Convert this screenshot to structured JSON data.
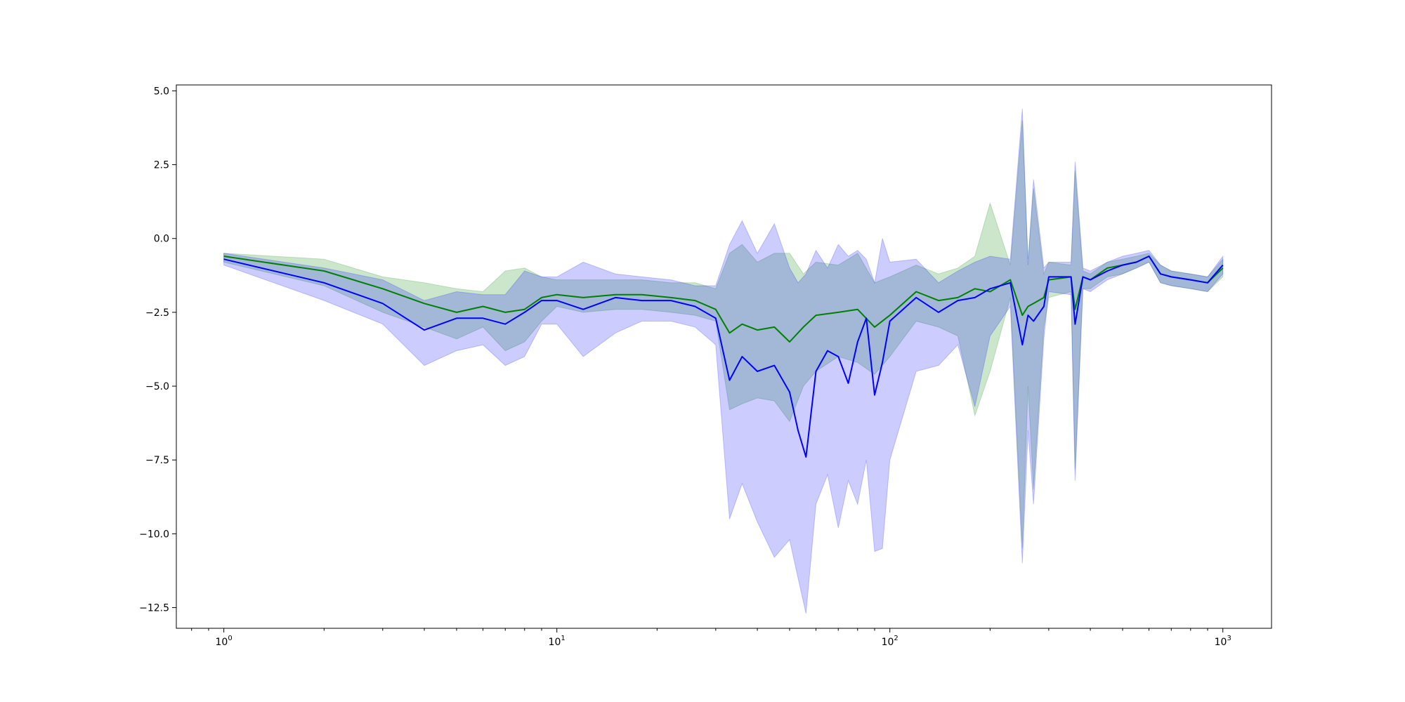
{
  "chart_data": {
    "type": "line",
    "title": "",
    "xlabel": "",
    "ylabel": "",
    "x_scale": "log",
    "xlim": [
      0.72,
      1400
    ],
    "ylim": [
      -13.2,
      5.2
    ],
    "grid": false,
    "x_ticks": [
      {
        "value": 1,
        "base": "10",
        "exp": "0"
      },
      {
        "value": 10,
        "base": "10",
        "exp": "1"
      },
      {
        "value": 100,
        "base": "10",
        "exp": "2"
      },
      {
        "value": 1000,
        "base": "10",
        "exp": "3"
      }
    ],
    "y_ticks": [
      {
        "value": 5.0,
        "label": "5.0"
      },
      {
        "value": 2.5,
        "label": "2.5"
      },
      {
        "value": 0.0,
        "label": "0.0"
      },
      {
        "value": -2.5,
        "label": "−2.5"
      },
      {
        "value": -5.0,
        "label": "−5.0"
      },
      {
        "value": -7.5,
        "label": "−7.5"
      },
      {
        "value": -10.0,
        "label": "−10.0"
      },
      {
        "value": -12.5,
        "label": "−12.5"
      }
    ],
    "series": [
      {
        "color": "#008000",
        "band_color": "#008000",
        "band_opacity": 0.2,
        "x": [
          1,
          2,
          3,
          4,
          5,
          6,
          7,
          8,
          9,
          10,
          12,
          15,
          18,
          22,
          26,
          30,
          33,
          36,
          40,
          45,
          50,
          55,
          60,
          70,
          80,
          90,
          100,
          120,
          140,
          160,
          180,
          200,
          230,
          250,
          260,
          270,
          290,
          300,
          350,
          360,
          380,
          400,
          450,
          500,
          550,
          600,
          650,
          700,
          800,
          900,
          1000
        ],
        "y": [
          -0.6,
          -1.1,
          -1.7,
          -2.2,
          -2.5,
          -2.3,
          -2.5,
          -2.4,
          -2.0,
          -1.9,
          -2.0,
          -1.9,
          -1.9,
          -2.0,
          -2.1,
          -2.4,
          -3.2,
          -2.9,
          -3.1,
          -3.0,
          -3.5,
          -3.0,
          -2.6,
          -2.5,
          -2.4,
          -3.0,
          -2.6,
          -1.8,
          -2.1,
          -2.0,
          -1.7,
          -1.8,
          -1.4,
          -2.6,
          -2.3,
          -2.2,
          -2.0,
          -1.4,
          -1.3,
          -2.4,
          -1.3,
          -1.4,
          -1.0,
          -0.9,
          -0.8,
          -0.6,
          -1.2,
          -1.3,
          -1.4,
          -1.5,
          -1.0
        ],
        "upper": [
          -0.5,
          -0.7,
          -1.3,
          -1.5,
          -1.7,
          -1.8,
          -1.1,
          -1.0,
          -1.3,
          -1.4,
          -1.4,
          -1.4,
          -1.4,
          -1.5,
          -1.5,
          -1.7,
          -0.5,
          -0.2,
          -0.8,
          -0.5,
          -0.5,
          -1.2,
          -0.8,
          -0.9,
          -0.5,
          -1.5,
          -1.3,
          -0.9,
          -1.2,
          -1.0,
          -0.6,
          1.2,
          -0.9,
          4.0,
          -0.7,
          1.7,
          -1.2,
          -0.8,
          -0.9,
          2.3,
          -1.1,
          -1.2,
          -0.8,
          -0.7,
          -0.6,
          -0.5,
          -0.9,
          -1.1,
          -1.2,
          -1.3,
          -0.7
        ],
        "lower": [
          -0.8,
          -1.6,
          -2.5,
          -3.0,
          -3.4,
          -3.0,
          -3.8,
          -3.5,
          -2.8,
          -2.3,
          -2.5,
          -2.4,
          -2.4,
          -2.5,
          -2.6,
          -2.8,
          -5.8,
          -5.6,
          -5.4,
          -5.5,
          -6.2,
          -5.0,
          -4.5,
          -4.0,
          -4.2,
          -4.6,
          -4.0,
          -2.8,
          -3.0,
          -3.3,
          -6.0,
          -4.5,
          -2.0,
          -10.5,
          -5.0,
          -8.5,
          -3.0,
          -2.0,
          -1.8,
          -7.8,
          -1.7,
          -1.7,
          -1.3,
          -1.2,
          -1.0,
          -0.8,
          -1.5,
          -1.6,
          -1.7,
          -1.8,
          -1.3
        ]
      },
      {
        "color": "#0000ff",
        "band_color": "#0000ff",
        "band_opacity": 0.2,
        "x": [
          1,
          2,
          3,
          4,
          5,
          6,
          7,
          8,
          9,
          10,
          12,
          15,
          18,
          22,
          26,
          30,
          33,
          36,
          40,
          45,
          50,
          53,
          56,
          60,
          65,
          70,
          75,
          80,
          85,
          90,
          95,
          100,
          120,
          140,
          160,
          180,
          200,
          230,
          250,
          260,
          270,
          290,
          300,
          350,
          360,
          380,
          400,
          450,
          500,
          550,
          600,
          650,
          700,
          800,
          900,
          1000
        ],
        "y": [
          -0.7,
          -1.5,
          -2.2,
          -3.1,
          -2.7,
          -2.7,
          -2.9,
          -2.5,
          -2.1,
          -2.1,
          -2.4,
          -2.0,
          -2.1,
          -2.1,
          -2.3,
          -2.7,
          -4.8,
          -4.0,
          -4.5,
          -4.3,
          -5.2,
          -6.5,
          -7.4,
          -4.5,
          -3.8,
          -4.0,
          -4.9,
          -3.5,
          -2.7,
          -5.3,
          -4.2,
          -2.8,
          -2.0,
          -2.5,
          -2.1,
          -2.0,
          -1.7,
          -1.5,
          -3.6,
          -2.6,
          -2.8,
          -2.3,
          -1.3,
          -1.3,
          -2.9,
          -1.3,
          -1.4,
          -1.1,
          -0.9,
          -0.8,
          -0.6,
          -1.2,
          -1.3,
          -1.4,
          -1.5,
          -0.9
        ],
        "upper": [
          -0.5,
          -1.0,
          -1.4,
          -2.1,
          -1.8,
          -1.9,
          -1.9,
          -1.1,
          -1.3,
          -1.3,
          -0.8,
          -1.2,
          -1.3,
          -1.4,
          -1.6,
          -1.6,
          -0.2,
          0.6,
          -0.5,
          0.5,
          -1.0,
          -1.5,
          -1.2,
          -0.4,
          -1.0,
          -0.2,
          -0.6,
          -0.4,
          -0.7,
          -1.5,
          0.0,
          -0.8,
          -0.7,
          -1.5,
          -1.1,
          -0.8,
          -0.6,
          -0.7,
          4.4,
          -0.9,
          2.0,
          -1.0,
          -0.8,
          -0.8,
          2.6,
          -1.0,
          -1.1,
          -0.8,
          -0.6,
          -0.5,
          -0.4,
          -0.9,
          -1.1,
          -1.2,
          -1.3,
          -0.6
        ],
        "lower": [
          -0.9,
          -2.1,
          -2.9,
          -4.3,
          -3.8,
          -3.6,
          -4.3,
          -4.0,
          -2.9,
          -2.9,
          -4.0,
          -3.2,
          -2.8,
          -2.8,
          -3.0,
          -3.6,
          -9.5,
          -8.3,
          -9.6,
          -10.8,
          -10.2,
          -11.5,
          -12.7,
          -9.0,
          -8.0,
          -9.8,
          -8.2,
          -9.0,
          -7.5,
          -10.6,
          -10.5,
          -7.5,
          -4.5,
          -4.3,
          -3.6,
          -5.7,
          -3.3,
          -2.3,
          -11.0,
          -6.5,
          -9.0,
          -3.4,
          -1.8,
          -1.9,
          -8.2,
          -1.7,
          -1.8,
          -1.4,
          -1.2,
          -1.0,
          -0.8,
          -1.5,
          -1.6,
          -1.7,
          -1.8,
          -1.2
        ]
      }
    ]
  }
}
